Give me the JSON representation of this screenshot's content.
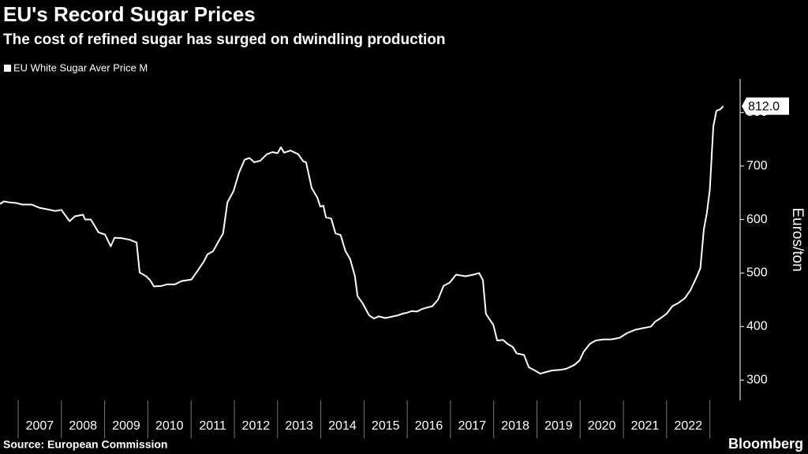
{
  "chart_data": {
    "type": "line",
    "title": "EU's Record Sugar Prices",
    "subtitle": "The cost of refined sugar has surged on dwindling production",
    "y_axis_label": "Euros/ton",
    "source": "Source: European Commission",
    "brand": "Bloomberg",
    "x": [
      2006.58,
      2006.67,
      2006.8,
      2006.95,
      2007.09,
      2007.31,
      2007.49,
      2007.68,
      2007.86,
      2008.0,
      2008.08,
      2008.19,
      2008.31,
      2008.5,
      2008.55,
      2008.68,
      2008.77,
      2008.86,
      2009.01,
      2009.14,
      2009.23,
      2009.41,
      2009.59,
      2009.74,
      2009.81,
      2009.96,
      2010.05,
      2010.14,
      2010.32,
      2010.45,
      2010.63,
      2010.78,
      2011.01,
      2011.14,
      2011.29,
      2011.38,
      2011.51,
      2011.64,
      2011.74,
      2011.84,
      2011.98,
      2012.11,
      2012.24,
      2012.35,
      2012.46,
      2012.6,
      2012.75,
      2012.88,
      2013.0,
      2013.08,
      2013.15,
      2013.3,
      2013.48,
      2013.59,
      2013.66,
      2013.79,
      2013.92,
      2013.99,
      2014.06,
      2014.12,
      2014.24,
      2014.34,
      2014.46,
      2014.57,
      2014.68,
      2014.79,
      2014.85,
      2014.97,
      2015.12,
      2015.23,
      2015.34,
      2015.49,
      2015.61,
      2015.78,
      2015.89,
      2016.0,
      2016.11,
      2016.22,
      2016.32,
      2016.43,
      2016.58,
      2016.71,
      2016.84,
      2016.98,
      2017.13,
      2017.35,
      2017.53,
      2017.66,
      2017.75,
      2017.82,
      2017.99,
      2018.08,
      2018.22,
      2018.31,
      2018.44,
      2018.53,
      2018.7,
      2018.81,
      2018.95,
      2019.08,
      2019.21,
      2019.35,
      2019.54,
      2019.68,
      2019.86,
      2019.99,
      2020.08,
      2020.23,
      2020.36,
      2020.54,
      2020.72,
      2020.91,
      2021.09,
      2021.27,
      2021.45,
      2021.64,
      2021.73,
      2021.85,
      2022.0,
      2022.13,
      2022.27,
      2022.42,
      2022.55,
      2022.68,
      2022.78,
      2022.86,
      2022.93,
      2023.0,
      2023.08,
      2023.15,
      2023.24,
      2023.31
    ],
    "series": [
      {
        "name": "EU White Sugar Aver Price M",
        "color": "#ffffff",
        "values": [
          629,
          634,
          632,
          631,
          628,
          628,
          622,
          619,
          616,
          618,
          609,
          597,
          606,
          609,
          600,
          600,
          588,
          576,
          572,
          550,
          566,
          565,
          562,
          557,
          501,
          494,
          487,
          475,
          476,
          479,
          479,
          485,
          488,
          503,
          521,
          535,
          541,
          560,
          574,
          632,
          653,
          688,
          712,
          715,
          707,
          710,
          722,
          726,
          724,
          735,
          725,
          729,
          722,
          709,
          707,
          659,
          641,
          624,
          626,
          604,
          602,
          574,
          571,
          541,
          526,
          494,
          457,
          443,
          421,
          415,
          419,
          416,
          418,
          421,
          424,
          426,
          429,
          428,
          432,
          435,
          438,
          450,
          476,
          482,
          497,
          494,
          497,
          500,
          487,
          424,
          403,
          374,
          375,
          368,
          362,
          350,
          347,
          324,
          318,
          312,
          315,
          318,
          319,
          321,
          328,
          337,
          353,
          368,
          374,
          376,
          376,
          379,
          388,
          394,
          397,
          400,
          409,
          415,
          424,
          438,
          444,
          453,
          468,
          490,
          509,
          582,
          612,
          656,
          774,
          803,
          806,
          812
        ],
        "last_label": "812.0"
      }
    ],
    "xlim": [
      2006.58,
      2023.7
    ],
    "xticks": [
      2007,
      2008,
      2009,
      2010,
      2011,
      2012,
      2013,
      2014,
      2015,
      2016,
      2017,
      2018,
      2019,
      2020,
      2021,
      2022
    ],
    "ylim": [
      262,
      863
    ],
    "yticks": [
      300,
      400,
      500,
      600,
      700,
      800
    ]
  }
}
